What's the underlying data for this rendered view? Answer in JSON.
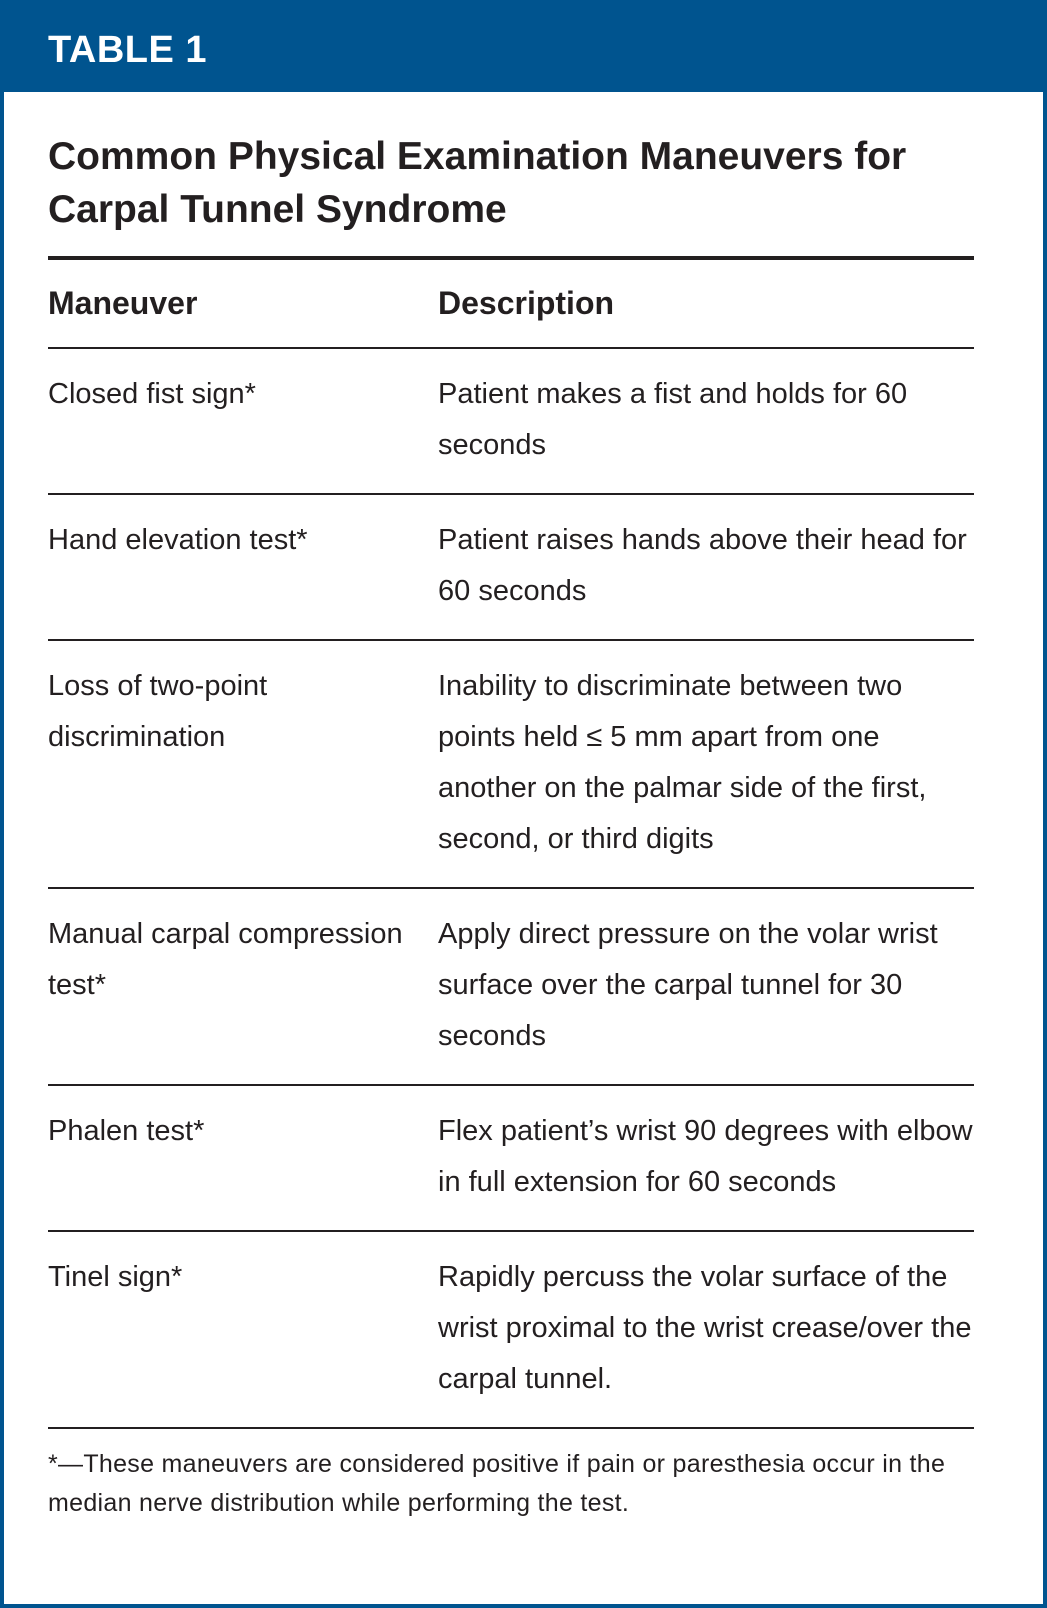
{
  "banner": {
    "label": "TABLE 1",
    "color": "#00548f"
  },
  "title": "Common Physical Examination Maneuvers for Carpal Tunnel Syndrome",
  "table": {
    "headers": [
      "Maneuver",
      "Description"
    ],
    "rows": [
      {
        "maneuver": "Closed fist sign*",
        "description": "Patient makes a fist and holds for 60 seconds"
      },
      {
        "maneuver": "Hand elevation test*",
        "description": "Patient raises hands above their head for 60 seconds"
      },
      {
        "maneuver": "Loss of two-point discrimination",
        "description": "Inability to discriminate between two points held ≤ 5 mm apart from one another on the palmar side of the first, second, or third digits"
      },
      {
        "maneuver": "Manual carpal compression test*",
        "description": "Apply direct pressure on the volar wrist surface over the carpal tunnel for 30 seconds"
      },
      {
        "maneuver": "Phalen test*",
        "description": "Flex patient’s wrist 90 degrees with elbow in full extension for 60 seconds"
      },
      {
        "maneuver": "Tinel sign*",
        "description": "Rapidly percuss the volar surface of the wrist proximal to the wrist crease/over the carpal tunnel."
      }
    ]
  },
  "footnote": "*—These maneuvers are considered positive if pain or paresthesia occur in the median nerve distribution while performing the test."
}
